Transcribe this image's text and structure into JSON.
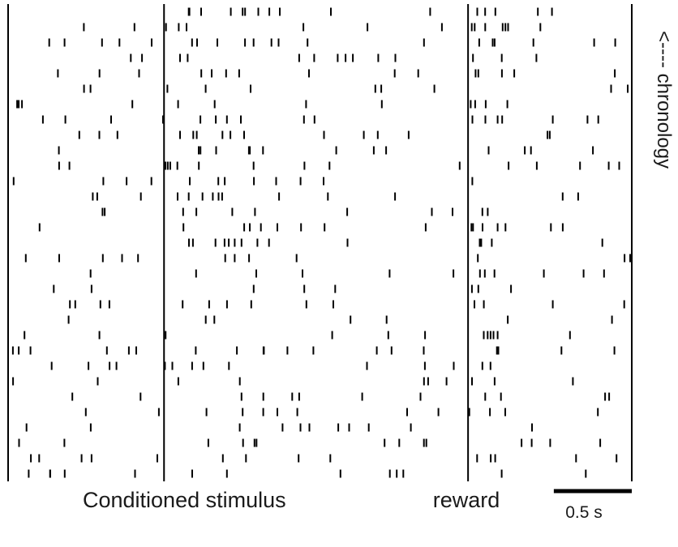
{
  "chart_data": {
    "type": "raster",
    "trials": 31,
    "time_axis_s": [
      0,
      4.0
    ],
    "event_lines_s": [
      0,
      1.0,
      2.95,
      4.0
    ],
    "events": {
      "conditioned_stimulus_s": 1.0,
      "reward_s": 2.95
    },
    "scale_bar": {
      "length_s": 0.5,
      "label": "0.5 s"
    },
    "labels": {
      "conditioned_stimulus": "Conditioned stimulus",
      "reward": "reward",
      "chronology": "<---- chronology"
    },
    "colors": {
      "spike": "#000000",
      "text": "#1a1a1a",
      "background": "#ffffff"
    },
    "spike_seed": 8123,
    "spike_rate_hz": {
      "baseline": 2.8,
      "post_cs_burst": 5.5,
      "post_reward_burst": 9.0,
      "late": 2.2
    }
  }
}
